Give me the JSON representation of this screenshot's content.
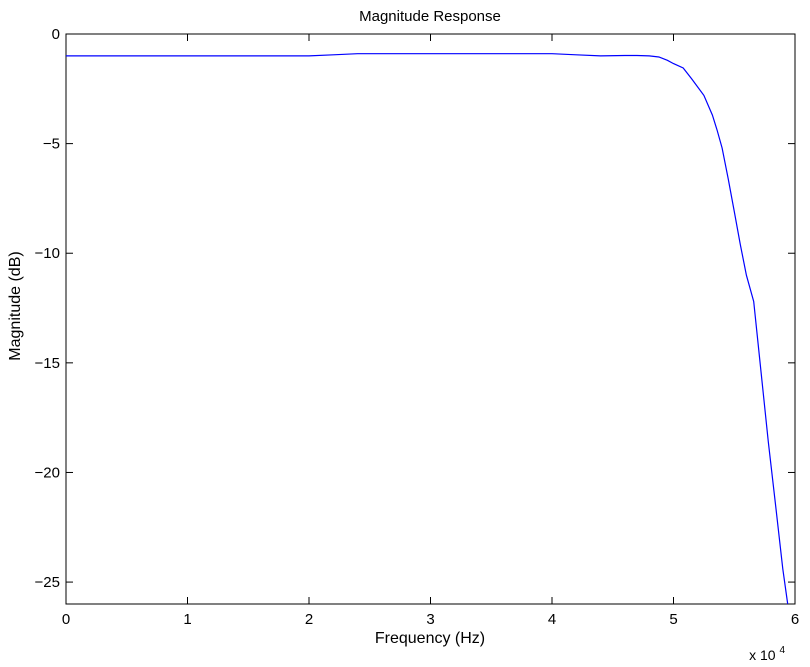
{
  "chart_data": {
    "type": "line",
    "title": "Magnitude Response",
    "xlabel": "Frequency (Hz)",
    "ylabel": "Magnitude (dB)",
    "x_multiplier_label": "x 10",
    "x_multiplier_exponent": "4",
    "xlim": [
      0,
      60000
    ],
    "ylim": [
      -26,
      0
    ],
    "grid": false,
    "x_ticks": [
      {
        "value": 0,
        "label": "0"
      },
      {
        "value": 10000,
        "label": "1"
      },
      {
        "value": 20000,
        "label": "2"
      },
      {
        "value": 30000,
        "label": "3"
      },
      {
        "value": 40000,
        "label": "4"
      },
      {
        "value": 50000,
        "label": "5"
      },
      {
        "value": 60000,
        "label": "6"
      }
    ],
    "y_ticks": [
      {
        "value": 0,
        "label": "0"
      },
      {
        "value": -5,
        "label": "−5"
      },
      {
        "value": -10,
        "label": "−10"
      },
      {
        "value": -15,
        "label": "−15"
      },
      {
        "value": -20,
        "label": "−20"
      },
      {
        "value": -25,
        "label": "−25"
      }
    ],
    "series": [
      {
        "color": "#0000ff",
        "x": [
          0,
          5000,
          10000,
          15000,
          20000,
          22000,
          24000,
          26000,
          28000,
          30000,
          32000,
          34000,
          36000,
          38000,
          40000,
          42000,
          44000,
          46000,
          47000,
          48000,
          48800,
          49500,
          50000,
          50800,
          51500,
          52500,
          53200,
          53600,
          54000,
          54500,
          55000,
          55500,
          56000,
          56600,
          57200,
          57800,
          58400,
          59000,
          59400
        ],
        "y": [
          -1.0,
          -1.0,
          -1.0,
          -1.0,
          -1.0,
          -0.95,
          -0.9,
          -0.9,
          -0.9,
          -0.9,
          -0.9,
          -0.9,
          -0.9,
          -0.9,
          -0.9,
          -0.95,
          -1.0,
          -0.98,
          -0.98,
          -1.0,
          -1.05,
          -1.2,
          -1.35,
          -1.55,
          -2.05,
          -2.8,
          -3.7,
          -4.4,
          -5.2,
          -6.6,
          -8.1,
          -9.6,
          -11.0,
          -12.2,
          -15.4,
          -18.6,
          -21.5,
          -24.4,
          -26.0
        ]
      }
    ]
  }
}
